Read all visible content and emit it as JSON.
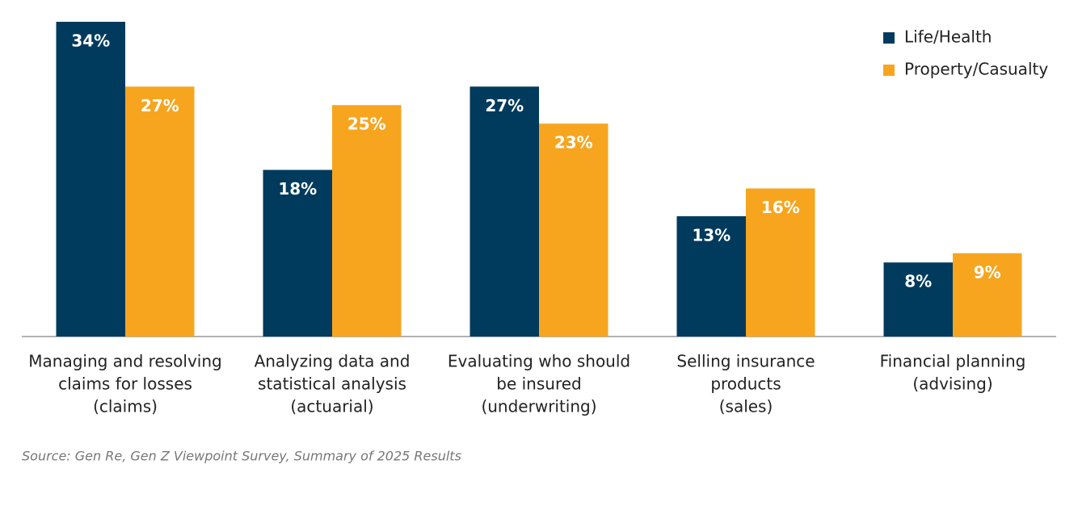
{
  "chart_data": {
    "type": "bar",
    "categories": [
      [
        "Managing and resolving",
        "claims for losses",
        "(claims)"
      ],
      [
        "Analyzing data and",
        "statistical analysis",
        "(actuarial)"
      ],
      [
        "Evaluating who should",
        "be insured",
        "(underwriting)"
      ],
      [
        "Selling insurance",
        "products",
        "(sales)"
      ],
      [
        "Financial planning",
        "(advising)"
      ]
    ],
    "series": [
      {
        "name": "Life/Health",
        "color": "#003a5d",
        "values": [
          34,
          18,
          27,
          13,
          8
        ],
        "value_labels": [
          "34%",
          "18%",
          "27%",
          "13%",
          "8%"
        ]
      },
      {
        "name": "Property/Casualty",
        "color": "#f7a51f",
        "values": [
          27,
          25,
          23,
          16,
          9
        ],
        "value_labels": [
          "27%",
          "25%",
          "23%",
          "16%",
          "9%"
        ]
      }
    ],
    "ylim": [
      0,
      34
    ],
    "legend": "top-right",
    "source": "Source: Gen Re, Gen Z Viewpoint Survey, Summary of 2025 Results"
  }
}
